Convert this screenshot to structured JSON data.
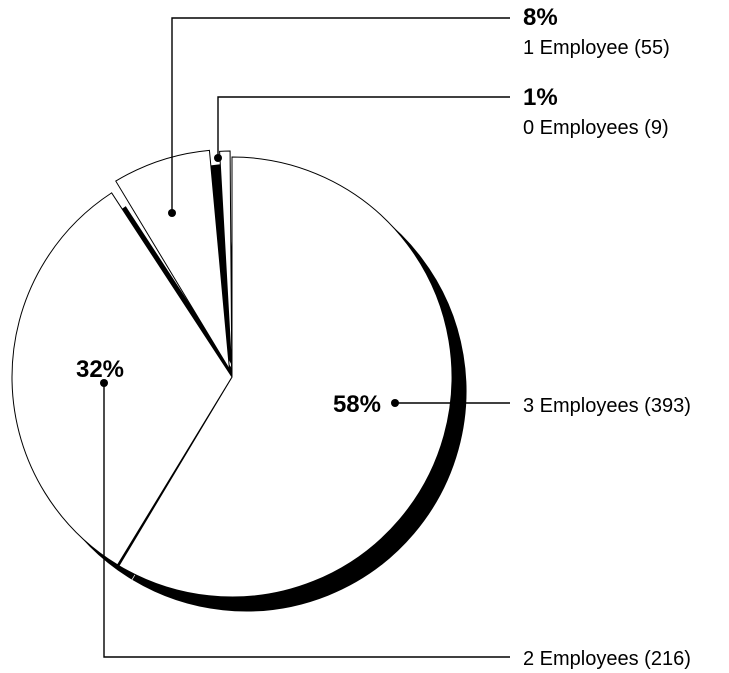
{
  "chart_data": {
    "type": "pie",
    "title": "",
    "slices": [
      {
        "label": "3 Employees (393)",
        "count": 393,
        "percent_label": "58%",
        "value": 58
      },
      {
        "label": "2 Employees (216)",
        "count": 216,
        "percent_label": "32%",
        "value": 32
      },
      {
        "label": "1 Employee (55)",
        "count": 55,
        "percent_label": "8%",
        "value": 8
      },
      {
        "label": "0 Employees (9)",
        "count": 9,
        "percent_label": "1%",
        "value": 1
      }
    ],
    "colors": {
      "fill": "#ffffff",
      "outline": "#000000",
      "shadow": "#000000"
    },
    "style": "exploded-3d-pie-with-leader-lines",
    "legend": "none"
  }
}
